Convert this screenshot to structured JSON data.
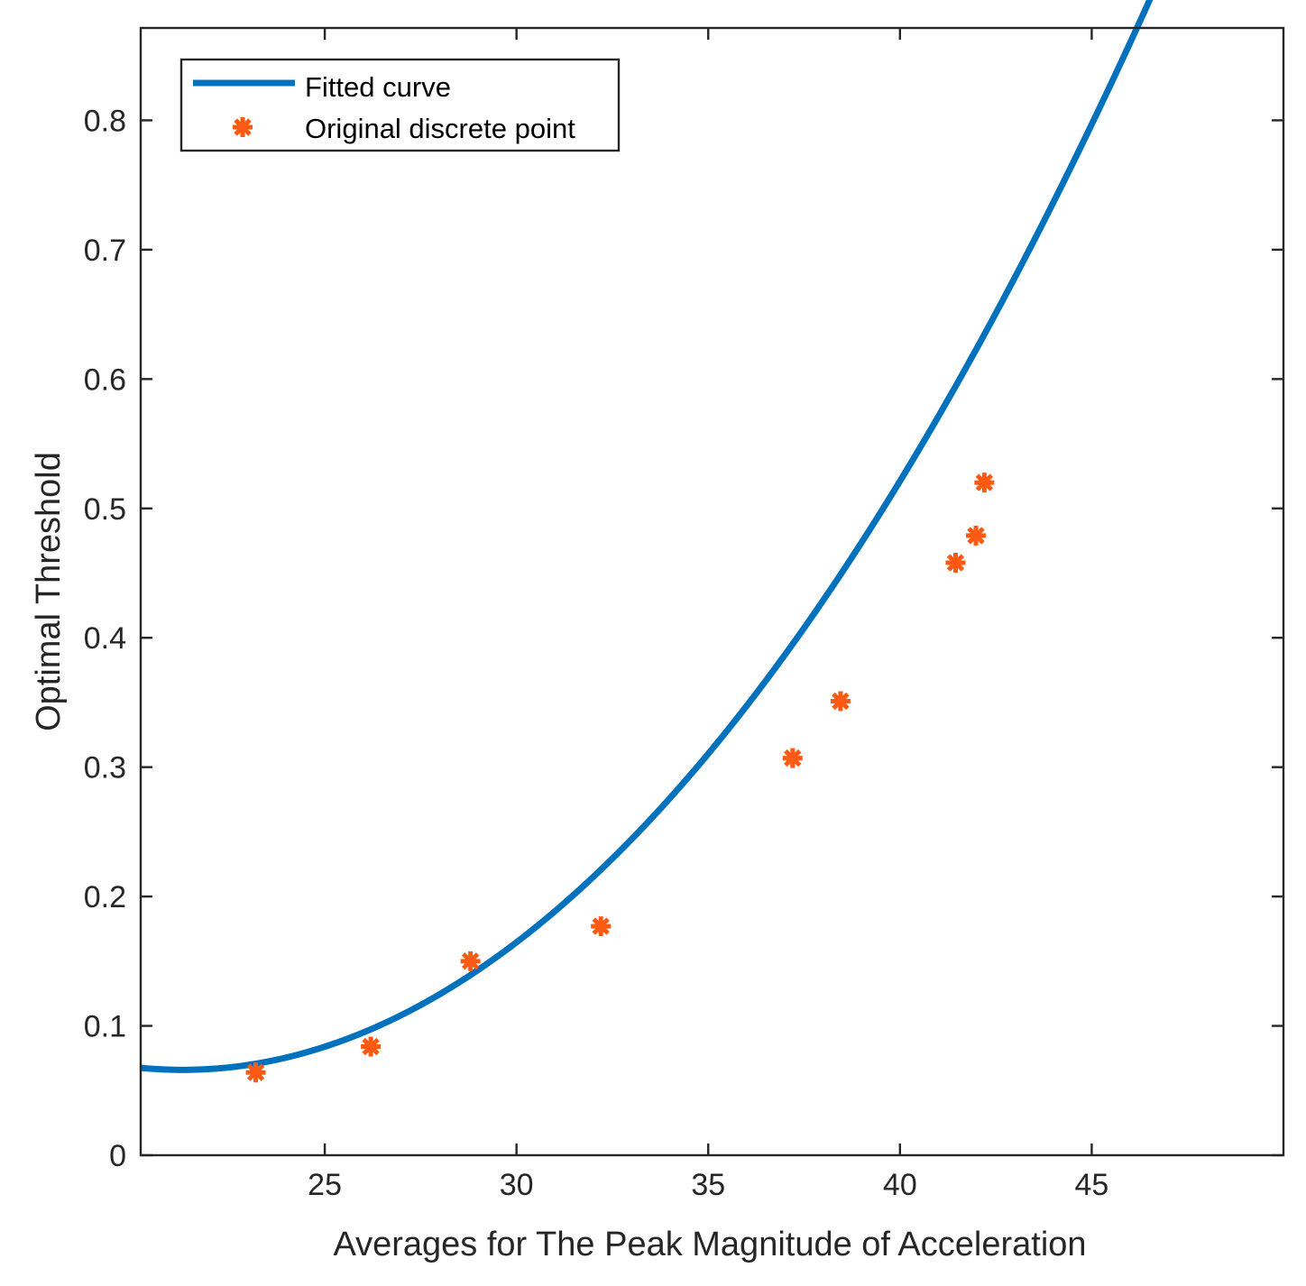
{
  "chart_data": {
    "type": "line",
    "title": "",
    "xlabel": "Averages for The Peak Magnitude of Acceleration",
    "ylabel": "Optimal Threshold",
    "xlim": [
      20.2,
      50.0
    ],
    "ylim": [
      0,
      0.8714
    ],
    "xticks": [
      25,
      30,
      35,
      40,
      45
    ],
    "yticks": [
      0,
      0.1,
      0.2,
      0.3,
      0.4,
      0.5,
      0.6,
      0.7,
      0.8
    ],
    "xtick_labels": [
      "25",
      "30",
      "35",
      "40",
      "45"
    ],
    "ytick_labels": [
      "0",
      "0.1",
      "0.2",
      "0.3",
      "0.4",
      "0.5",
      "0.6",
      "0.7",
      "0.8"
    ],
    "grid": false,
    "legend_position": "top-left",
    "series": [
      {
        "name": "Fitted curve",
        "kind": "line",
        "color": "#0072BD",
        "coefficients": [
          0.0013003,
          -0.05537,
          0.65544
        ],
        "x_start": 20.2,
        "x_end": 50.0
      },
      {
        "name": "Original discrete point",
        "kind": "scatter",
        "marker": "asterisk",
        "color": "#FF5A14",
        "x": [
          23.2,
          26.2,
          28.8,
          32.2,
          37.2,
          38.45,
          41.45,
          41.98,
          42.2
        ],
        "y": [
          0.064,
          0.084,
          0.15,
          0.177,
          0.307,
          0.351,
          0.458,
          0.479,
          0.52
        ]
      }
    ]
  }
}
